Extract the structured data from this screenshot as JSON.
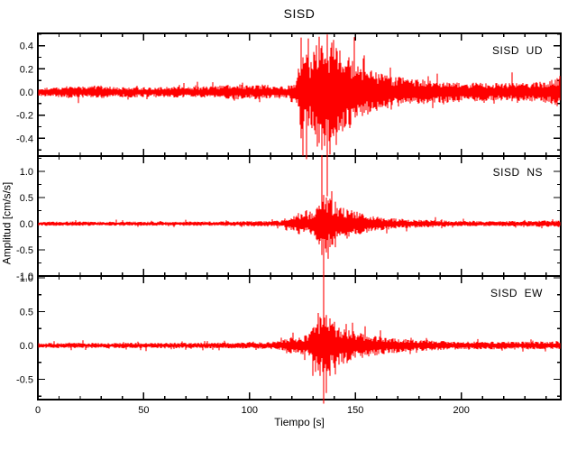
{
  "chart_data": {
    "type": "line",
    "subtype": "seismogram",
    "title": "SISD",
    "xlabel": "Tiempo [s]",
    "ylabel": "Amplitud [cm/s/s]",
    "x_range": [
      0,
      247
    ],
    "x_major_ticks": [
      0,
      50,
      100,
      150,
      200
    ],
    "x_major_tick_labels": [
      "0",
      "50",
      "100",
      "150",
      "200"
    ],
    "x_minor_step": 10,
    "grid": false,
    "legend_position": "none",
    "trace_color": "#ff0000",
    "axis_color": "#000000",
    "background": "#ffffff",
    "panels": [
      {
        "id": "UD",
        "station": "SISD",
        "component": "UD",
        "label": "SISD  UD",
        "ylim": [
          -0.553,
          0.506
        ],
        "y_major_ticks": [
          0.4,
          0.2,
          0.0,
          -0.2,
          -0.4
        ],
        "y_major_tick_labels": [
          "0.4",
          "0.2",
          "0.0",
          "-0.2",
          "-0.4"
        ],
        "y_minor_step": 0.1,
        "noise_envelope": [
          [
            0,
            0.03
          ],
          [
            8,
            0.035
          ],
          [
            15,
            0.045
          ],
          [
            20,
            0.04
          ],
          [
            28,
            0.05
          ],
          [
            35,
            0.035
          ],
          [
            45,
            0.04
          ],
          [
            55,
            0.035
          ],
          [
            65,
            0.04
          ],
          [
            75,
            0.038
          ],
          [
            85,
            0.045
          ],
          [
            93,
            0.06
          ],
          [
            100,
            0.045
          ],
          [
            106,
            0.055
          ],
          [
            112,
            0.045
          ],
          [
            118,
            0.045
          ],
          [
            122,
            0.06
          ],
          [
            124,
            0.28
          ],
          [
            126,
            0.32
          ],
          [
            128,
            0.24
          ],
          [
            130,
            0.28
          ],
          [
            132,
            0.4
          ],
          [
            134,
            0.42
          ],
          [
            136,
            0.38
          ],
          [
            138,
            0.36
          ],
          [
            140,
            0.42
          ],
          [
            142,
            0.34
          ],
          [
            145,
            0.3
          ],
          [
            148,
            0.24
          ],
          [
            151,
            0.2
          ],
          [
            155,
            0.17
          ],
          [
            160,
            0.14
          ],
          [
            165,
            0.12
          ],
          [
            170,
            0.11
          ],
          [
            176,
            0.1
          ],
          [
            182,
            0.09
          ],
          [
            190,
            0.08
          ],
          [
            198,
            0.075
          ],
          [
            206,
            0.07
          ],
          [
            214,
            0.065
          ],
          [
            222,
            0.065
          ],
          [
            230,
            0.065
          ],
          [
            238,
            0.075
          ],
          [
            243,
            0.09
          ],
          [
            247,
            0.12
          ]
        ],
        "spikes": [
          [
            124.3,
            0.47,
            0.4
          ],
          [
            125.1,
            0.3,
            0.55
          ],
          [
            127.0,
            0.25,
            0.58
          ],
          [
            133.0,
            0.46,
            0.44
          ],
          [
            134.0,
            0.4,
            0.5
          ],
          [
            136.8,
            0.43,
            0.9
          ],
          [
            139.6,
            0.45,
            0.38
          ],
          [
            141.0,
            0.38,
            0.42
          ],
          [
            147.0,
            0.3,
            0.28
          ],
          [
            224.0,
            0.17,
            0.08
          ]
        ]
      },
      {
        "id": "NS",
        "station": "SISD",
        "component": "NS",
        "label": "SISD  NS",
        "ylim": [
          -1.0,
          1.293
        ],
        "y_major_ticks": [
          1.0,
          0.5,
          0.0,
          -0.5,
          -1.0
        ],
        "y_major_tick_labels": [
          "1.0",
          "0.5",
          "0.0",
          "-0.5",
          "-1.0"
        ],
        "y_minor_step": 0.25,
        "noise_envelope": [
          [
            0,
            0.03
          ],
          [
            10,
            0.035
          ],
          [
            20,
            0.035
          ],
          [
            30,
            0.032
          ],
          [
            40,
            0.035
          ],
          [
            50,
            0.033
          ],
          [
            60,
            0.035
          ],
          [
            70,
            0.035
          ],
          [
            80,
            0.035
          ],
          [
            90,
            0.038
          ],
          [
            100,
            0.04
          ],
          [
            108,
            0.045
          ],
          [
            114,
            0.05
          ],
          [
            118,
            0.07
          ],
          [
            121,
            0.13
          ],
          [
            123,
            0.18
          ],
          [
            125,
            0.16
          ],
          [
            127,
            0.14
          ],
          [
            129,
            0.17
          ],
          [
            131,
            0.22
          ],
          [
            133,
            0.35
          ],
          [
            134,
            0.5
          ],
          [
            135,
            0.45
          ],
          [
            136,
            0.4
          ],
          [
            137,
            0.42
          ],
          [
            138,
            0.4
          ],
          [
            140,
            0.32
          ],
          [
            142,
            0.28
          ],
          [
            144,
            0.26
          ],
          [
            146,
            0.24
          ],
          [
            148,
            0.22
          ],
          [
            150,
            0.2
          ],
          [
            153,
            0.17
          ],
          [
            156,
            0.14
          ],
          [
            159,
            0.12
          ],
          [
            163,
            0.1
          ],
          [
            167,
            0.09
          ],
          [
            172,
            0.08
          ],
          [
            178,
            0.07
          ],
          [
            185,
            0.06
          ],
          [
            195,
            0.05
          ],
          [
            205,
            0.045
          ],
          [
            215,
            0.045
          ],
          [
            225,
            0.045
          ],
          [
            235,
            0.05
          ],
          [
            247,
            0.055
          ]
        ],
        "spikes": [
          [
            131.5,
            0.28,
            0.3
          ],
          [
            134.3,
            1.31,
            0.6
          ],
          [
            135.0,
            0.55,
            0.95
          ],
          [
            136.2,
            0.5,
            0.55
          ],
          [
            138.8,
            0.62,
            0.4
          ],
          [
            140.5,
            0.42,
            0.45
          ]
        ]
      },
      {
        "id": "EW",
        "station": "SISD",
        "component": "EW",
        "label": "SISD  EW",
        "ylim": [
          -0.8,
          1.027
        ],
        "y_major_ticks": [
          1.0,
          0.5,
          0.0,
          -0.5
        ],
        "y_major_tick_labels": [
          "1.0",
          "0.5",
          "0.0",
          "-0.5"
        ],
        "y_minor_step": 0.25,
        "noise_envelope": [
          [
            0,
            0.03
          ],
          [
            10,
            0.032
          ],
          [
            20,
            0.034
          ],
          [
            30,
            0.032
          ],
          [
            40,
            0.034
          ],
          [
            50,
            0.033
          ],
          [
            60,
            0.034
          ],
          [
            70,
            0.035
          ],
          [
            80,
            0.035
          ],
          [
            90,
            0.036
          ],
          [
            100,
            0.038
          ],
          [
            108,
            0.042
          ],
          [
            113,
            0.05
          ],
          [
            117,
            0.08
          ],
          [
            120,
            0.11
          ],
          [
            123,
            0.1
          ],
          [
            126,
            0.12
          ],
          [
            128,
            0.15
          ],
          [
            130,
            0.22
          ],
          [
            132,
            0.3
          ],
          [
            134,
            0.35
          ],
          [
            135,
            0.38
          ],
          [
            136,
            0.35
          ],
          [
            138,
            0.32
          ],
          [
            140,
            0.28
          ],
          [
            142,
            0.25
          ],
          [
            145,
            0.22
          ],
          [
            148,
            0.19
          ],
          [
            151,
            0.17
          ],
          [
            154,
            0.15
          ],
          [
            158,
            0.13
          ],
          [
            162,
            0.11
          ],
          [
            166,
            0.1
          ],
          [
            171,
            0.085
          ],
          [
            177,
            0.075
          ],
          [
            184,
            0.065
          ],
          [
            192,
            0.055
          ],
          [
            202,
            0.05
          ],
          [
            212,
            0.048
          ],
          [
            222,
            0.048
          ],
          [
            232,
            0.05
          ],
          [
            242,
            0.052
          ],
          [
            247,
            0.055
          ]
        ],
        "spikes": [
          [
            132.3,
            0.48,
            0.35
          ],
          [
            133.4,
            0.42,
            0.45
          ],
          [
            134.8,
            1.09,
            0.86
          ],
          [
            136.3,
            0.45,
            0.42
          ],
          [
            138.0,
            0.4,
            0.45
          ],
          [
            140.0,
            0.35,
            0.33
          ]
        ]
      }
    ]
  }
}
